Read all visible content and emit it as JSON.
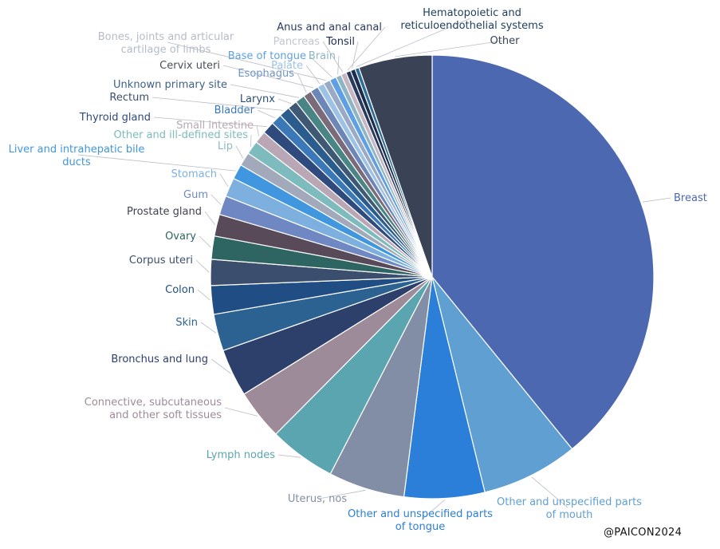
{
  "watermark": "@PAICON2024",
  "chart_data": {
    "type": "pie",
    "title": "",
    "slices": [
      {
        "label": "Breast",
        "value": 39.4,
        "color": "#4c68b1",
        "label_color": "#4c68b1"
      },
      {
        "label": "Other and unspecified parts of mouth",
        "value": 7.1,
        "color": "#609fd2",
        "label_color": "#609fd2"
      },
      {
        "label": "Other and unspecified parts of tongue",
        "value": 5.9,
        "color": "#2b7fd8",
        "label_color": "#2b7fd8"
      },
      {
        "label": "Uterus, nos",
        "value": 5.6,
        "color": "#818ea5",
        "label_color": "#818ea5"
      },
      {
        "label": "Lymph nodes",
        "value": 4.9,
        "color": "#5ba5b0",
        "label_color": "#5ba5b0"
      },
      {
        "label": "Connective, subcutaneous and other soft tissues",
        "value": 3.7,
        "color": "#9e8b9a",
        "label_color": "#9e8b9a"
      },
      {
        "label": "Bronchus and lung",
        "value": 3.5,
        "color": "#2d3f6b",
        "label_color": "#2d3f6b"
      },
      {
        "label": "Skin",
        "value": 2.7,
        "color": "#2c6292",
        "label_color": "#2c6292"
      },
      {
        "label": "Colon",
        "value": 2.1,
        "color": "#1f4d84",
        "label_color": "#1f4d84"
      },
      {
        "label": "Corpus uteri",
        "value": 1.9,
        "color": "#3b4e6d",
        "label_color": "#3b4e6d"
      },
      {
        "label": "Ovary",
        "value": 1.7,
        "color": "#2e6563",
        "label_color": "#2e6563"
      },
      {
        "label": "Prostate gland",
        "value": 1.6,
        "color": "#594a5a",
        "label_color": "#3f4250"
      },
      {
        "label": "Gum",
        "value": 1.4,
        "color": "#6f88c4",
        "label_color": "#6f88c4"
      },
      {
        "label": "Stomach",
        "value": 1.4,
        "color": "#7db0de",
        "label_color": "#7db0de"
      },
      {
        "label": "Liver and intrahepatic bile ducts",
        "value": 1.1,
        "color": "#4196e0",
        "label_color": "#4196e0"
      },
      {
        "label": "Lip",
        "value": 1.0,
        "color": "#a1a9bb",
        "label_color": "#8fb9c0"
      },
      {
        "label": "Other and ill-defined sites",
        "value": 1.0,
        "color": "#7dbbbe",
        "label_color": "#7dbbbe"
      },
      {
        "label": "Small intestine",
        "value": 0.9,
        "color": "#b9a7b6",
        "label_color": "#b9a7b6"
      },
      {
        "label": "Thyroid gland",
        "value": 0.9,
        "color": "#2f4a7c",
        "label_color": "#2f4a7c"
      },
      {
        "label": "Bladder",
        "value": 0.8,
        "color": "#3b78b8",
        "label_color": "#3b78b8"
      },
      {
        "label": "Rectum",
        "value": 0.8,
        "color": "#2a5c8e",
        "label_color": "#3c4f6a"
      },
      {
        "label": "Larynx",
        "value": 0.7,
        "color": "#3f5874",
        "label_color": "#2e4f78"
      },
      {
        "label": "Unknown primary site",
        "value": 0.7,
        "color": "#4a8586",
        "label_color": "#3d5f8a"
      },
      {
        "label": "Esophagus",
        "value": 0.6,
        "color": "#7a6a7a",
        "label_color": "#6f93c9"
      },
      {
        "label": "Cervix uteri",
        "value": 0.6,
        "color": "#6d86b8",
        "label_color": "#4a4f5a"
      },
      {
        "label": "Palate",
        "value": 0.5,
        "color": "#9cc3e6",
        "label_color": "#9cc3e6"
      },
      {
        "label": "Bones, joints and articular cartilage of limbs",
        "value": 0.5,
        "color": "#9aa9c6",
        "label_color": "#b5bcc8"
      },
      {
        "label": "Base of tongue",
        "value": 0.5,
        "color": "#5fa0e4",
        "label_color": "#5fa0e4"
      },
      {
        "label": "Brain",
        "value": 0.4,
        "color": "#8eb5c4",
        "label_color": "#8eb5c4"
      },
      {
        "label": "Pancreas",
        "value": 0.4,
        "color": "#c5b6c4",
        "label_color": "#c2c6cf"
      },
      {
        "label": "Anus and anal canal",
        "value": 0.35,
        "color": "#2a3a5f",
        "label_color": "#2a3a5f"
      },
      {
        "label": "Tonsil",
        "value": 0.35,
        "color": "#1b2c4f",
        "label_color": "#1b2c4f"
      },
      {
        "label": "Hematopoietic and reticuloendothelial systems",
        "value": 0.3,
        "color": "#2c6d9a",
        "label_color": "#1e3d5c"
      },
      {
        "label": "Other",
        "value": 5.4,
        "color": "#3a4256",
        "label_color": "#3a4256"
      }
    ]
  }
}
